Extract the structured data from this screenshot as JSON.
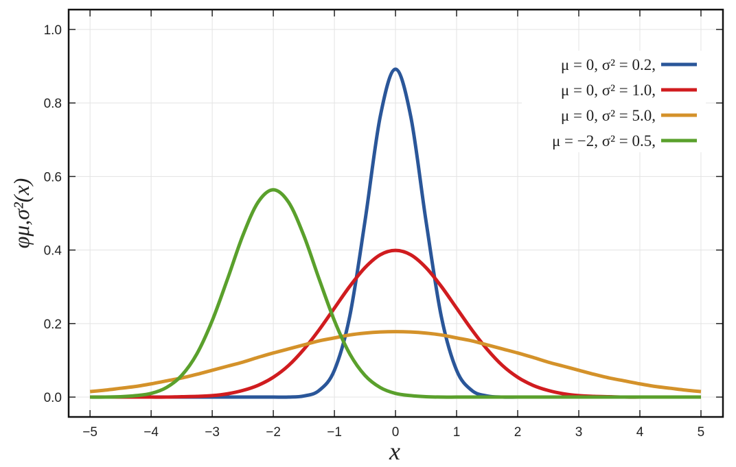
{
  "chart_data": {
    "type": "line",
    "x_label": "x",
    "y_label": "φμ,σ²(x)",
    "x": [
      -5,
      -4.75,
      -4.5,
      -4.25,
      -4,
      -3.75,
      -3.5,
      -3.25,
      -3,
      -2.75,
      -2.5,
      -2.25,
      -2,
      -1.75,
      -1.5,
      -1.25,
      -1,
      -0.75,
      -0.5,
      -0.25,
      0,
      0.25,
      0.5,
      0.75,
      1,
      1.25,
      1.5,
      1.75,
      2,
      2.25,
      2.5,
      2.75,
      3,
      3.25,
      3.5,
      3.75,
      4,
      4.25,
      4.5,
      4.75,
      5
    ],
    "series": [
      {
        "name": "μ = 0,    σ² = 0.2,",
        "color": "#2a5699",
        "values": [
          0,
          0,
          0,
          0,
          0,
          0,
          0,
          0,
          0,
          0,
          0,
          0,
          0,
          0,
          0.003,
          0.018,
          0.073,
          0.219,
          0.478,
          0.763,
          0.892,
          0.763,
          0.478,
          0.219,
          0.073,
          0.018,
          0.003,
          0,
          0,
          0,
          0,
          0,
          0,
          0,
          0,
          0,
          0,
          0,
          0,
          0,
          0
        ]
      },
      {
        "name": "μ = 0,    σ² = 1.0,",
        "color": "#d01c1f",
        "values": [
          0,
          0,
          0,
          0,
          0,
          0,
          0.001,
          0.002,
          0.004,
          0.009,
          0.018,
          0.032,
          0.054,
          0.086,
          0.13,
          0.183,
          0.242,
          0.301,
          0.352,
          0.387,
          0.399,
          0.387,
          0.352,
          0.301,
          0.242,
          0.183,
          0.13,
          0.086,
          0.054,
          0.032,
          0.018,
          0.009,
          0.004,
          0.002,
          0.001,
          0,
          0,
          0,
          0,
          0,
          0
        ]
      },
      {
        "name": "μ = 0,    σ² = 5.0,",
        "color": "#d4922a",
        "values": [
          0.015,
          0.019,
          0.024,
          0.029,
          0.036,
          0.044,
          0.052,
          0.062,
          0.073,
          0.084,
          0.095,
          0.108,
          0.12,
          0.131,
          0.142,
          0.153,
          0.161,
          0.169,
          0.174,
          0.177,
          0.178,
          0.177,
          0.174,
          0.169,
          0.161,
          0.153,
          0.142,
          0.131,
          0.12,
          0.108,
          0.095,
          0.084,
          0.073,
          0.062,
          0.052,
          0.044,
          0.036,
          0.029,
          0.024,
          0.019,
          0.015
        ]
      },
      {
        "name": "μ = −2,  σ² = 0.5,",
        "color": "#5aa02c",
        "values": [
          0,
          0,
          0.001,
          0.004,
          0.01,
          0.026,
          0.059,
          0.118,
          0.208,
          0.321,
          0.439,
          0.53,
          0.564,
          0.53,
          0.439,
          0.321,
          0.208,
          0.118,
          0.059,
          0.026,
          0.01,
          0.004,
          0.001,
          0,
          0,
          0,
          0,
          0,
          0,
          0,
          0,
          0,
          0,
          0,
          0,
          0,
          0,
          0,
          0,
          0,
          0
        ]
      }
    ],
    "xlim": [
      -5.35,
      5.36
    ],
    "ylim": [
      -0.054,
      1.054
    ],
    "xticks": [
      {
        "value": -5,
        "label": "−5"
      },
      {
        "value": -4,
        "label": "−4"
      },
      {
        "value": -3,
        "label": "−3"
      },
      {
        "value": -2,
        "label": "−2"
      },
      {
        "value": -1,
        "label": "−1"
      },
      0,
      1,
      2,
      3,
      4,
      5
    ],
    "yticks": [
      {
        "value": 0,
        "label": "0.0"
      },
      0.2,
      0.4,
      0.6,
      0.8,
      {
        "value": 1,
        "label": "1.0"
      }
    ],
    "grid": true,
    "legend": "upper right"
  }
}
